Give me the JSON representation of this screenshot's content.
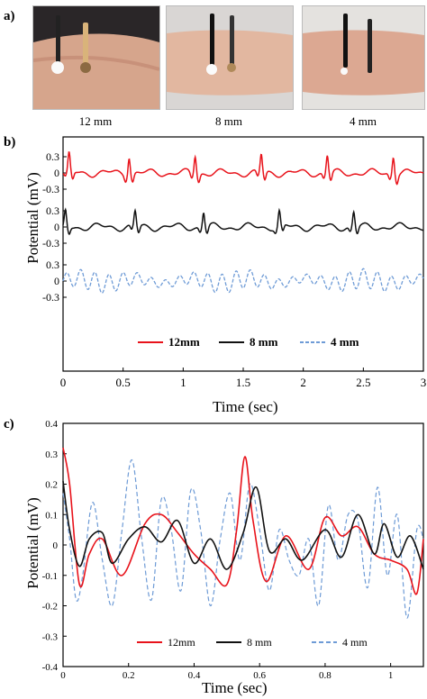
{
  "panel_a": {
    "letter": "a)",
    "photos": [
      {
        "caption": "12 mm",
        "electrode_gap_mm": 12
      },
      {
        "caption": "8 mm",
        "electrode_gap_mm": 8
      },
      {
        "caption": "4 mm",
        "electrode_gap_mm": 4
      }
    ]
  },
  "panel_b": {
    "letter": "b)"
  },
  "panel_c": {
    "letter": "c)"
  },
  "colors": {
    "red": "#e8131b",
    "black": "#111111",
    "blue": "#6e9bd6"
  },
  "chart_data": [
    {
      "type": "line",
      "panel": "b",
      "xlabel": "Time (sec)",
      "ylabel": "Potential (mV)",
      "xlim": [
        0,
        3
      ],
      "xticks": [
        "0",
        "0.5",
        "1",
        "1.5",
        "2",
        "2.5",
        "3"
      ],
      "yticks_per_trace": [
        "0.3",
        "0",
        "-0.3"
      ],
      "grid": false,
      "legend_position": "bottom-center",
      "series": [
        {
          "name": "12mm",
          "color": "#e8131b",
          "dash": "solid",
          "stacked_offset_group": "top",
          "beat_times": [
            0.05,
            0.55,
            1.1,
            1.65,
            2.2,
            2.75
          ],
          "r_peak_mV": 0.33,
          "baseline_amp_mV": 0.05
        },
        {
          "name": "8 mm",
          "color": "#111111",
          "dash": "solid",
          "stacked_offset_group": "middle",
          "beat_times": [
            0.02,
            0.6,
            1.17,
            1.8,
            2.42
          ],
          "r_peak_mV": 0.28,
          "baseline_amp_mV": 0.05
        },
        {
          "name": "4 mm",
          "color": "#6e9bd6",
          "dash": "dashed",
          "stacked_offset_group": "bottom",
          "oscillation_hz": 8.5,
          "amplitude_mV": 0.18
        }
      ]
    },
    {
      "type": "line",
      "panel": "c",
      "xlabel": "Time (sec)",
      "ylabel": "Potential (mV)",
      "xlim": [
        0,
        1.1
      ],
      "ylim": [
        -0.4,
        0.4
      ],
      "xticks": [
        "0",
        "0.2",
        "0.4",
        "0.6",
        "0.8",
        "1"
      ],
      "yticks": [
        "-0.4",
        "-0.3",
        "-0.2",
        "-0.1",
        "0",
        "0.1",
        "0.2",
        "0.3",
        "0.4"
      ],
      "grid": false,
      "legend_position": "bottom-center",
      "series": [
        {
          "name": "12mm",
          "color": "#e8131b",
          "dash": "solid",
          "x": [
            0,
            0.02,
            0.05,
            0.08,
            0.12,
            0.18,
            0.25,
            0.3,
            0.35,
            0.4,
            0.45,
            0.5,
            0.53,
            0.555,
            0.58,
            0.62,
            0.68,
            0.75,
            0.8,
            0.85,
            0.9,
            0.95,
            1.0,
            1.05,
            1.08,
            1.1
          ],
          "y": [
            0.32,
            0.2,
            -0.13,
            -0.03,
            0.02,
            -0.1,
            0.07,
            0.1,
            0.04,
            -0.03,
            -0.08,
            -0.13,
            0.05,
            0.29,
            0.08,
            -0.12,
            0.03,
            -0.08,
            0.09,
            0.03,
            0.06,
            -0.03,
            -0.05,
            -0.08,
            -0.16,
            0.02
          ]
        },
        {
          "name": "8 mm",
          "color": "#111111",
          "dash": "solid",
          "x": [
            0,
            0.02,
            0.05,
            0.08,
            0.12,
            0.15,
            0.2,
            0.25,
            0.3,
            0.35,
            0.4,
            0.45,
            0.5,
            0.55,
            0.59,
            0.63,
            0.68,
            0.73,
            0.8,
            0.85,
            0.9,
            0.95,
            0.98,
            1.02,
            1.06,
            1.1
          ],
          "y": [
            0.21,
            0.05,
            -0.07,
            0.02,
            0.04,
            -0.06,
            0.02,
            0.06,
            0.01,
            0.08,
            -0.06,
            0.02,
            -0.08,
            0.04,
            0.19,
            -0.02,
            0.02,
            -0.05,
            0.05,
            -0.04,
            0.1,
            -0.03,
            0.07,
            -0.04,
            0.03,
            -0.08
          ]
        },
        {
          "name": "4 mm",
          "color": "#6e9bd6",
          "dash": "dashed",
          "x": [
            0,
            0.02,
            0.04,
            0.06,
            0.09,
            0.12,
            0.15,
            0.18,
            0.21,
            0.24,
            0.27,
            0.3,
            0.33,
            0.36,
            0.39,
            0.42,
            0.45,
            0.48,
            0.51,
            0.54,
            0.57,
            0.6,
            0.63,
            0.66,
            0.69,
            0.72,
            0.75,
            0.78,
            0.81,
            0.84,
            0.87,
            0.9,
            0.93,
            0.96,
            0.99,
            1.02,
            1.05,
            1.08,
            1.1
          ],
          "y": [
            0.17,
            0.02,
            -0.18,
            -0.1,
            0.14,
            -0.05,
            -0.2,
            0.05,
            0.28,
            0.02,
            -0.18,
            0.15,
            0.05,
            -0.15,
            0.18,
            0.05,
            -0.2,
            0.02,
            0.17,
            -0.05,
            0.2,
            0.05,
            -0.15,
            0.05,
            -0.05,
            -0.1,
            0.02,
            -0.2,
            0.13,
            -0.05,
            0.1,
            0.08,
            -0.14,
            0.19,
            -0.1,
            0.1,
            -0.24,
            0.05,
            0.02
          ]
        }
      ]
    }
  ]
}
